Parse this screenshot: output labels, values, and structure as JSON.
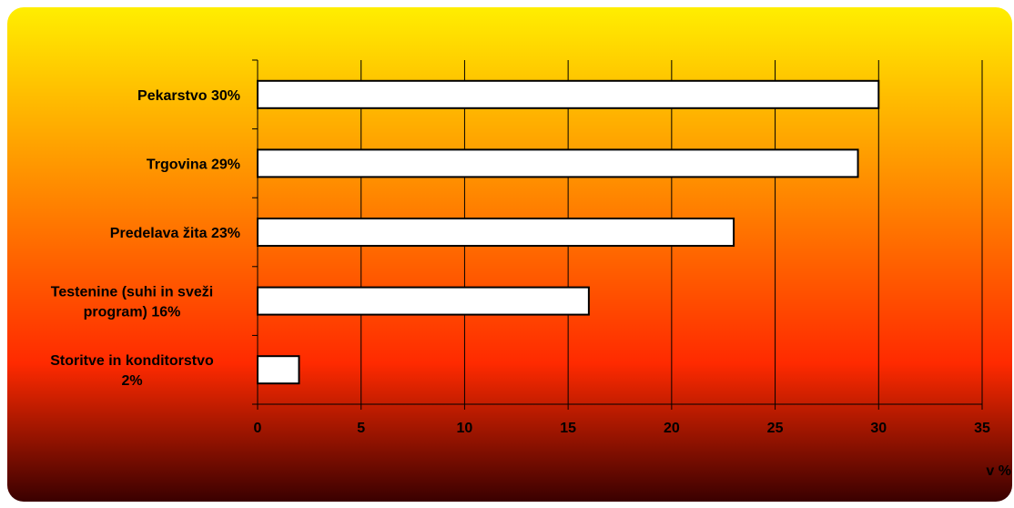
{
  "colors": {
    "gradient_top": "#ffee00",
    "gradient_mid": "#ff2a00",
    "gradient_bottom": "#3a0000",
    "bar_fill": "#ffffff",
    "bar_stroke": "#000000",
    "grid": "#000000"
  },
  "chart_data": {
    "type": "bar",
    "orientation": "horizontal",
    "categories": [
      "Pekarstvo   30%",
      "Trgovina   29%",
      "Predelava žita   23%",
      "Testenine (suhi in sveži program)   16%",
      "Storitve in konditorstvo 2%"
    ],
    "category_lines": [
      [
        "Pekarstvo   30%"
      ],
      [
        "Trgovina   29%"
      ],
      [
        "Predelava žita   23%"
      ],
      [
        "Testenine (suhi in sveži",
        "program)   16%"
      ],
      [
        "Storitve in konditorstvo",
        "2%"
      ]
    ],
    "values": [
      30,
      29,
      23,
      16,
      2
    ],
    "xlim": [
      0,
      35
    ],
    "xticks": [
      "0",
      "5",
      "10",
      "15",
      "20",
      "25",
      "30",
      "35"
    ],
    "xlabel": "v %",
    "ylabel": "",
    "title": "",
    "grid": "vertical",
    "legend": "none"
  }
}
